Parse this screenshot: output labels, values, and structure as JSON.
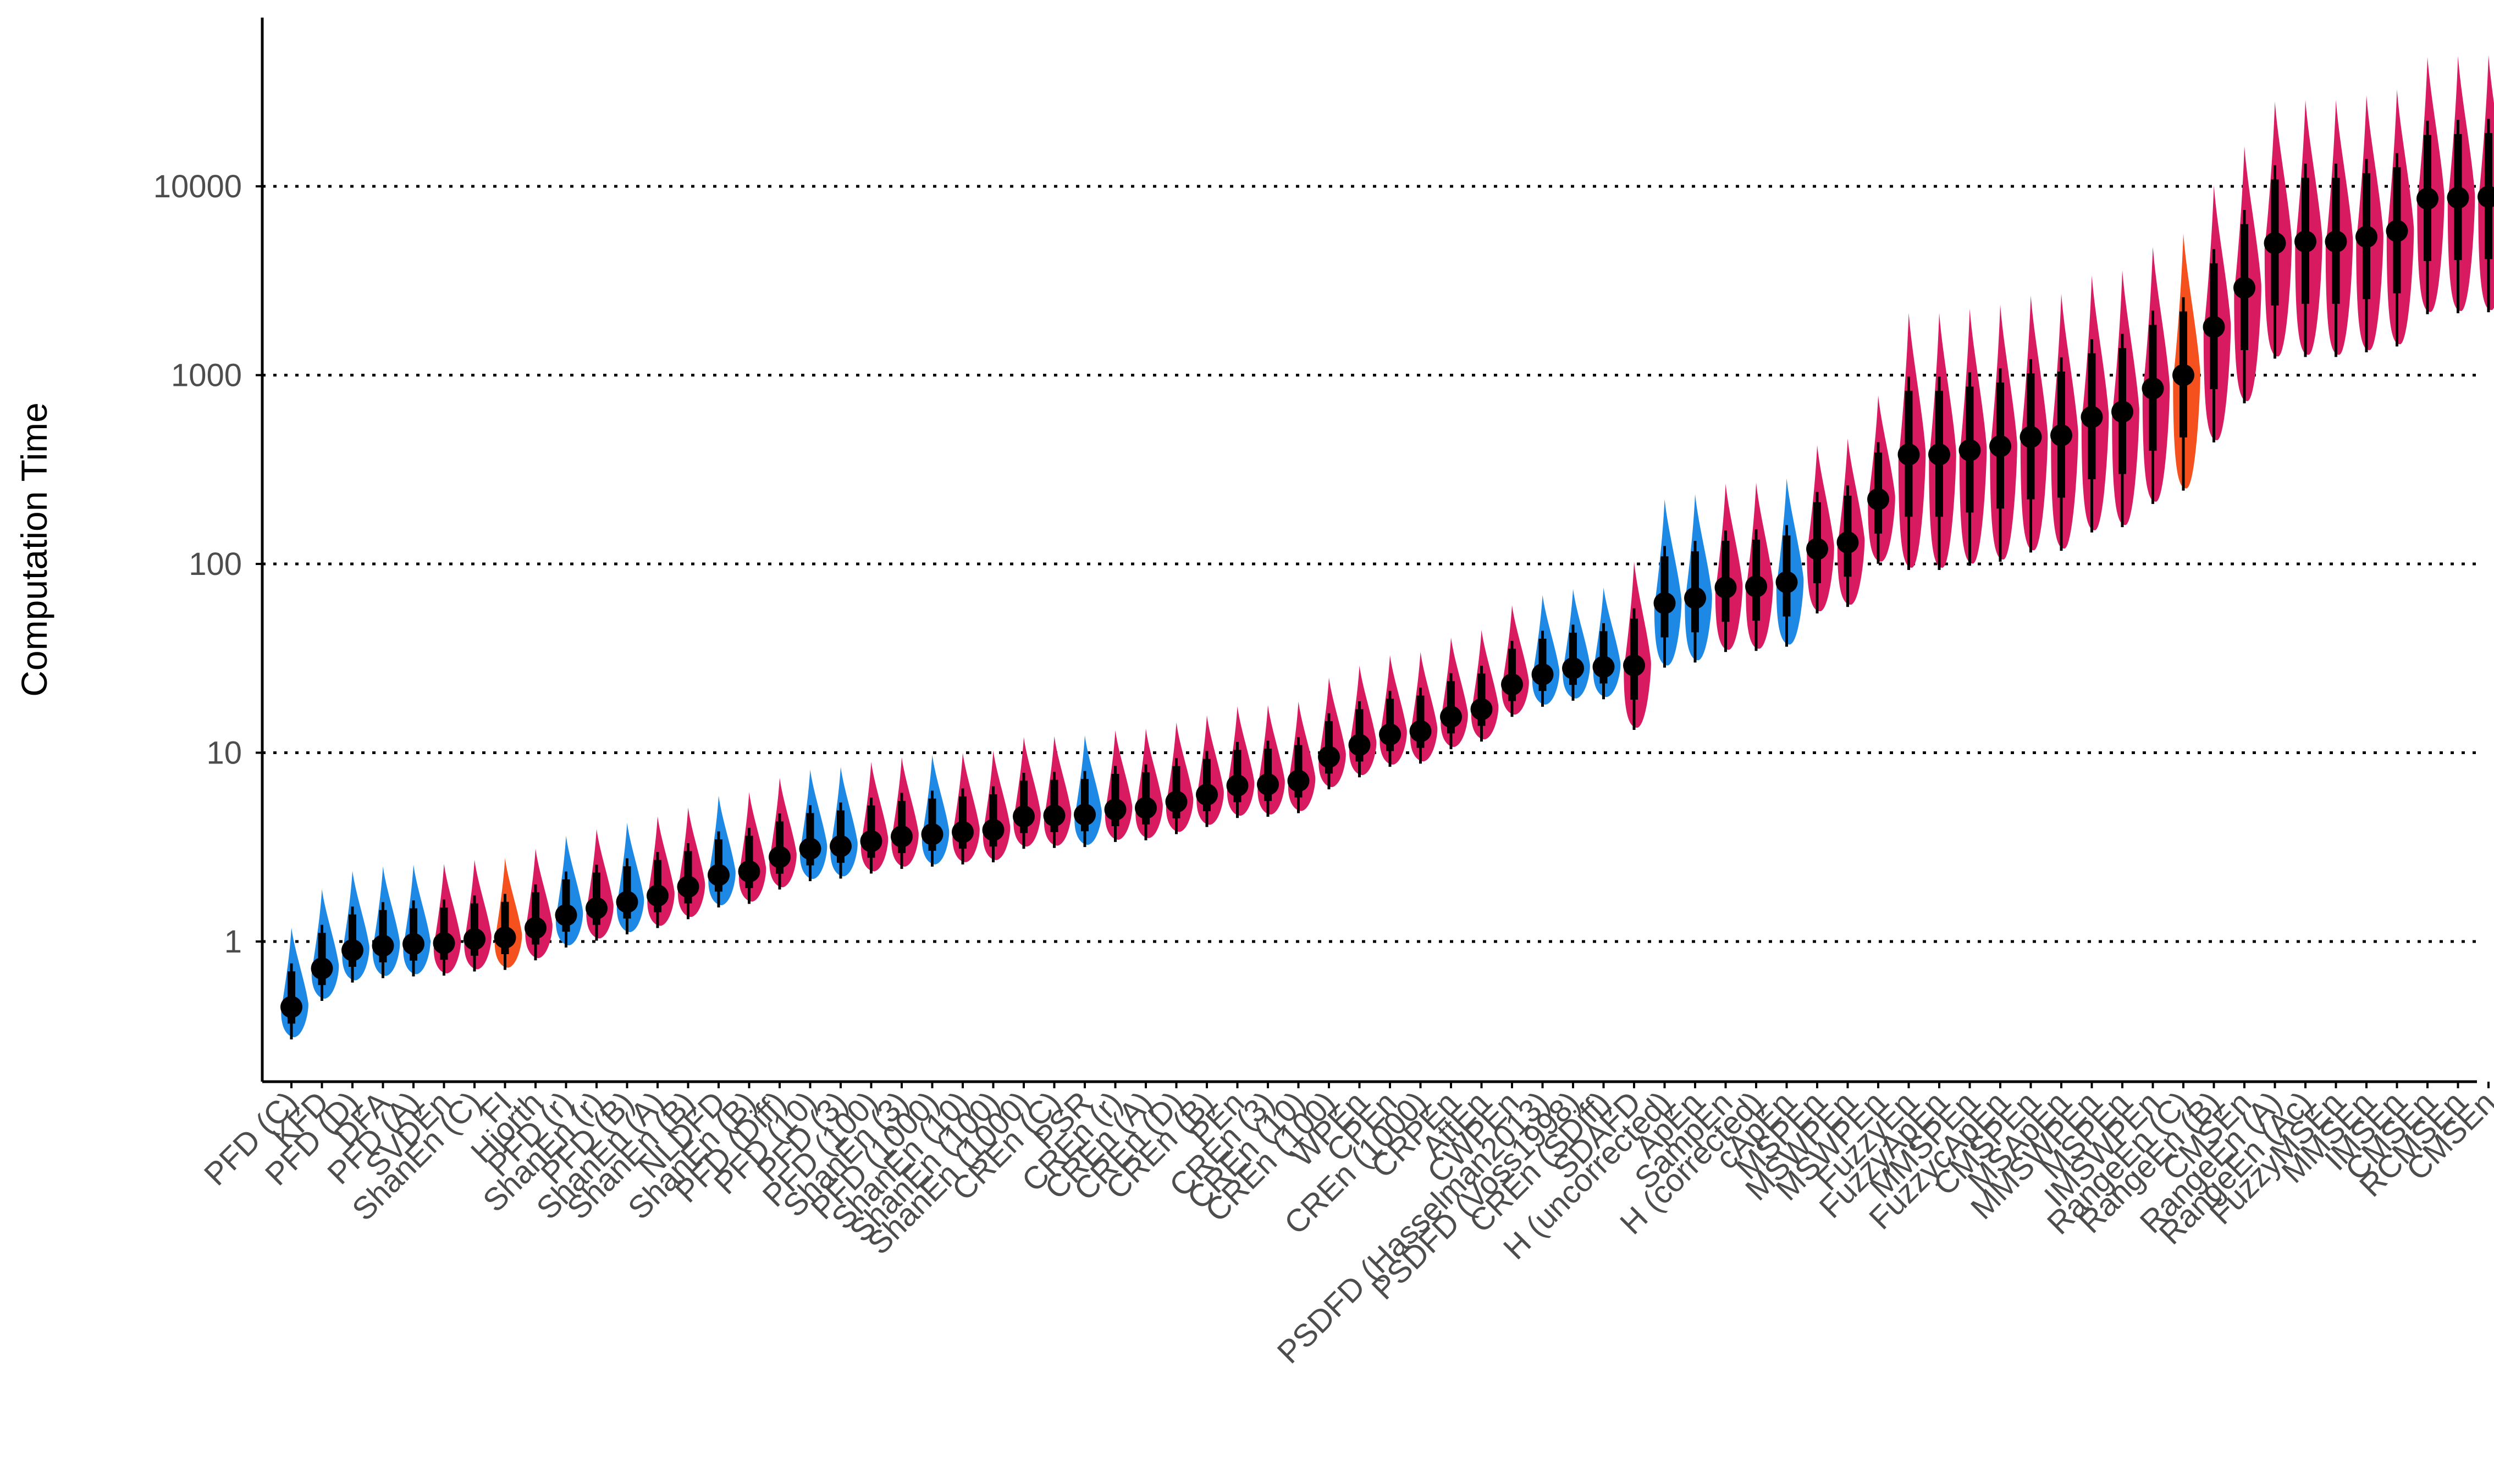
{
  "chart_data": {
    "type": "violin",
    "title": "",
    "xlabel": "",
    "ylabel": "Computation Time",
    "yscale": "log10",
    "ylim": [
      0.18,
      70000
    ],
    "yticks": [
      1,
      10,
      100,
      1000,
      10000
    ],
    "ytick_labels": [
      "1",
      "10",
      "100",
      "1000",
      "10000"
    ],
    "grid": "horizontal dotted at y ticks",
    "legend": "none",
    "colors": {
      "blue": "#1e88e5",
      "red": "#d81b60",
      "orange": "#f4511e",
      "point": "#000000",
      "axis": "#000000"
    },
    "categories": [
      {
        "label": "PFD (C)",
        "median": 0.45,
        "color": "blue"
      },
      {
        "label": "KFD",
        "median": 0.72,
        "color": "blue"
      },
      {
        "label": "PFD (D)",
        "median": 0.9,
        "color": "blue"
      },
      {
        "label": "DFA",
        "median": 0.95,
        "color": "blue"
      },
      {
        "label": "PFD (A)",
        "median": 0.97,
        "color": "blue"
      },
      {
        "label": "SVDEn",
        "median": 0.98,
        "color": "red"
      },
      {
        "label": "ShanEn (C)",
        "median": 1.03,
        "color": "red"
      },
      {
        "label": "FI",
        "median": 1.05,
        "color": "orange"
      },
      {
        "label": "Hjorth",
        "median": 1.18,
        "color": "red"
      },
      {
        "label": "PFD (r)",
        "median": 1.38,
        "color": "blue"
      },
      {
        "label": "ShanEn (r)",
        "median": 1.5,
        "color": "red"
      },
      {
        "label": "PFD (B)",
        "median": 1.62,
        "color": "blue"
      },
      {
        "label": "ShanEn (A)",
        "median": 1.75,
        "color": "red"
      },
      {
        "label": "ShanEn (B)",
        "median": 1.95,
        "color": "red"
      },
      {
        "label": "NLDFD",
        "median": 2.25,
        "color": "blue"
      },
      {
        "label": "ShanEn (B)",
        "median": 2.35,
        "color": "red"
      },
      {
        "label": "PFD (Diff)",
        "median": 2.8,
        "color": "red"
      },
      {
        "label": "PFD (10)",
        "median": 3.1,
        "color": "blue"
      },
      {
        "label": "PFD (3)",
        "median": 3.2,
        "color": "blue"
      },
      {
        "label": "PFD (100)",
        "median": 3.4,
        "color": "red"
      },
      {
        "label": "ShanEn (3)",
        "median": 3.6,
        "color": "red"
      },
      {
        "label": "PFD (1000)",
        "median": 3.7,
        "color": "blue"
      },
      {
        "label": "ShanEn (10)",
        "median": 3.8,
        "color": "red"
      },
      {
        "label": "ShanEn (100)",
        "median": 3.9,
        "color": "red"
      },
      {
        "label": "ShanEn (1000)",
        "median": 4.6,
        "color": "red"
      },
      {
        "label": "CREn (C)",
        "median": 4.65,
        "color": "red"
      },
      {
        "label": "PSR",
        "median": 4.7,
        "color": "blue"
      },
      {
        "label": "CREn (r)",
        "median": 5.0,
        "color": "red"
      },
      {
        "label": "CREn (A)",
        "median": 5.1,
        "color": "red"
      },
      {
        "label": "CREn (D)",
        "median": 5.5,
        "color": "red"
      },
      {
        "label": "CREn (B)",
        "median": 6.0,
        "color": "red"
      },
      {
        "label": "PEn",
        "median": 6.7,
        "color": "red"
      },
      {
        "label": "CREn (3)",
        "median": 6.8,
        "color": "red"
      },
      {
        "label": "CREn (10)",
        "median": 7.1,
        "color": "red"
      },
      {
        "label": "CREn (100)",
        "median": 9.5,
        "color": "red"
      },
      {
        "label": "WPEn",
        "median": 11.0,
        "color": "red"
      },
      {
        "label": "CPEn",
        "median": 12.5,
        "color": "red"
      },
      {
        "label": "CREn (1000)",
        "median": 13.0,
        "color": "red"
      },
      {
        "label": "CRPEn",
        "median": 15.5,
        "color": "red"
      },
      {
        "label": "AttEn",
        "median": 17.0,
        "color": "red"
      },
      {
        "label": "CWPEn",
        "median": 23.0,
        "color": "red"
      },
      {
        "label": "PSDFD (Hasselman2013)",
        "median": 26.0,
        "color": "blue"
      },
      {
        "label": "PSDFD (Voss1998)",
        "median": 28.0,
        "color": "blue"
      },
      {
        "label": "CREn (SDiff)",
        "median": 28.5,
        "color": "blue"
      },
      {
        "label": "SDAFD",
        "median": 29.0,
        "color": "red"
      },
      {
        "label": "H (uncorrected)",
        "median": 62.0,
        "color": "blue"
      },
      {
        "label": "ApEn",
        "median": 66.0,
        "color": "blue"
      },
      {
        "label": "SampEn",
        "median": 75.0,
        "color": "red"
      },
      {
        "label": "H (corrected)",
        "median": 76.0,
        "color": "red"
      },
      {
        "label": "cApEn",
        "median": 80.0,
        "color": "blue"
      },
      {
        "label": "MSPEn",
        "median": 120.0,
        "color": "red"
      },
      {
        "label": "MSWPEn",
        "median": 130.0,
        "color": "red"
      },
      {
        "label": "MSWPEn",
        "median": 220.0,
        "color": "red"
      },
      {
        "label": "FuzzyEn",
        "median": 380.0,
        "color": "red"
      },
      {
        "label": "FuzzyApEn",
        "median": 380.0,
        "color": "red"
      },
      {
        "label": "MMSPEn",
        "median": 400.0,
        "color": "red"
      },
      {
        "label": "FuzzycApEn",
        "median": 420.0,
        "color": "red"
      },
      {
        "label": "CMSPEn",
        "median": 470.0,
        "color": "red"
      },
      {
        "label": "MSApEn",
        "median": 480.0,
        "color": "red"
      },
      {
        "label": "MMSWPEn",
        "median": 600.0,
        "color": "red"
      },
      {
        "label": "MSPEn",
        "median": 640.0,
        "color": "red"
      },
      {
        "label": "IMSWPEn",
        "median": 850.0,
        "color": "red"
      },
      {
        "label": "RangeEn (C)",
        "median": 1000.0,
        "color": "orange"
      },
      {
        "label": "RangeEn (B)",
        "median": 1800.0,
        "color": "red"
      },
      {
        "label": "CMSEn",
        "median": 2900.0,
        "color": "red"
      },
      {
        "label": "RangeEn (A)",
        "median": 5000.0,
        "color": "red"
      },
      {
        "label": "RangeEn (Ac)",
        "median": 5100.0,
        "color": "red"
      },
      {
        "label": "FuzzyMSEn",
        "median": 5100.0,
        "color": "red"
      },
      {
        "label": "MMSEn",
        "median": 5400.0,
        "color": "red"
      },
      {
        "label": "IMSEn",
        "median": 5800.0,
        "color": "red"
      },
      {
        "label": "CMSEn",
        "median": 8600.0,
        "color": "red"
      },
      {
        "label": "RCMSEn",
        "median": 8700.0,
        "color": "red"
      },
      {
        "label": "CMSEn",
        "median": 8800.0,
        "color": "red"
      }
    ]
  }
}
